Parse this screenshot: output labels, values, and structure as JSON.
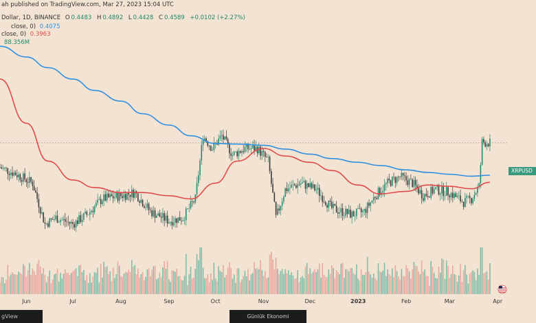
{
  "header": {
    "author_line": "ah published on TradingView.com, Mar 27, 2023 15:04 UTC",
    "symbol_line": "Dollar, 1D, BINANCE",
    "ohlc": [
      {
        "key": "O",
        "value": "0.4483"
      },
      {
        "key": "H",
        "value": "0.4892"
      },
      {
        "key": "L",
        "value": "0.4428"
      },
      {
        "key": "C",
        "value": "0.4589"
      },
      {
        "key": "",
        "value": "+0.0102 (+2.27%)"
      }
    ]
  },
  "indicators": [
    {
      "label": "close, 0)",
      "value": "0.4075",
      "color": "#2f8fe0"
    },
    {
      "label": "close, 0)",
      "value": "0.3963",
      "color": "#e04a4a"
    },
    {
      "label": "",
      "value": "88.356M",
      "color": "#1b8a6b"
    }
  ],
  "price_tag": {
    "label": "XRPUSD",
    "color": "#3a9a7e"
  },
  "footer": {
    "brand": "gView",
    "watermark": "Günlük Ekonomi"
  },
  "colors": {
    "up": "#1f8a70",
    "down": "#3a3a3a",
    "ma_long": "#2f8fe0",
    "ma_short": "#e04a4a",
    "vol_up": "#e9a79e",
    "vol_down": "#7fbcaa",
    "last_price_line": "#9a9a9a"
  },
  "chart_data": {
    "type": "candlestick",
    "symbol": "XRPUSD",
    "interval": "1D",
    "x_ticks": [
      "Jun",
      "Jul",
      "Aug",
      "Sep",
      "Oct",
      "Nov",
      "Dec",
      "2023",
      "Feb",
      "Mar",
      "Apr"
    ],
    "x_range": [
      "2022-05-15",
      "2023-04-08"
    ],
    "y_range": [
      0.28,
      0.62
    ],
    "last_price": 0.4589,
    "ma_long": {
      "dates": [
        "2022-05-15",
        "2022-06-01",
        "2022-06-15",
        "2022-07-01",
        "2022-07-15",
        "2022-08-01",
        "2022-08-15",
        "2022-09-01",
        "2022-09-15",
        "2022-10-01",
        "2022-10-15",
        "2022-11-01",
        "2022-11-15",
        "2022-12-01",
        "2022-12-15",
        "2023-01-01",
        "2023-01-15",
        "2023-02-01",
        "2023-02-15",
        "2023-03-01",
        "2023-03-15",
        "2023-03-27"
      ],
      "values": [
        0.612,
        0.595,
        0.578,
        0.56,
        0.542,
        0.525,
        0.505,
        0.487,
        0.47,
        0.458,
        0.457,
        0.455,
        0.449,
        0.441,
        0.434,
        0.428,
        0.423,
        0.416,
        0.412,
        0.409,
        0.406,
        0.4075
      ]
    },
    "ma_short": {
      "dates": [
        "2022-05-15",
        "2022-06-01",
        "2022-06-15",
        "2022-07-01",
        "2022-07-15",
        "2022-08-01",
        "2022-08-15",
        "2022-09-01",
        "2022-09-15",
        "2022-10-01",
        "2022-10-15",
        "2022-11-01",
        "2022-11-15",
        "2022-12-01",
        "2022-12-15",
        "2023-01-01",
        "2023-01-15",
        "2023-02-01",
        "2023-02-15",
        "2023-03-01",
        "2023-03-15",
        "2023-03-27"
      ],
      "values": [
        0.56,
        0.49,
        0.43,
        0.4,
        0.388,
        0.38,
        0.38,
        0.375,
        0.37,
        0.395,
        0.43,
        0.45,
        0.438,
        0.428,
        0.415,
        0.392,
        0.378,
        0.382,
        0.392,
        0.39,
        0.386,
        0.3963
      ]
    },
    "price_path": {
      "dates": [
        "2022-05-15",
        "2022-05-25",
        "2022-06-05",
        "2022-06-13",
        "2022-06-20",
        "2022-07-01",
        "2022-07-10",
        "2022-07-20",
        "2022-08-01",
        "2022-08-10",
        "2022-08-20",
        "2022-09-01",
        "2022-09-10",
        "2022-09-18",
        "2022-09-23",
        "2022-09-29",
        "2022-10-05",
        "2022-10-12",
        "2022-10-20",
        "2022-10-28",
        "2022-11-04",
        "2022-11-09",
        "2022-11-15",
        "2022-11-25",
        "2022-12-05",
        "2022-12-15",
        "2022-12-28",
        "2023-01-05",
        "2023-01-12",
        "2023-01-20",
        "2023-01-28",
        "2023-02-05",
        "2023-02-12",
        "2023-02-20",
        "2023-03-01",
        "2023-03-10",
        "2023-03-15",
        "2023-03-20",
        "2023-03-22",
        "2023-03-27"
      ],
      "values": [
        0.42,
        0.41,
        0.395,
        0.33,
        0.34,
        0.33,
        0.345,
        0.37,
        0.375,
        0.38,
        0.35,
        0.335,
        0.34,
        0.37,
        0.47,
        0.45,
        0.47,
        0.44,
        0.45,
        0.45,
        0.43,
        0.34,
        0.385,
        0.395,
        0.385,
        0.355,
        0.345,
        0.35,
        0.375,
        0.395,
        0.405,
        0.395,
        0.375,
        0.385,
        0.38,
        0.365,
        0.37,
        0.39,
        0.46,
        0.4589
      ]
    }
  }
}
